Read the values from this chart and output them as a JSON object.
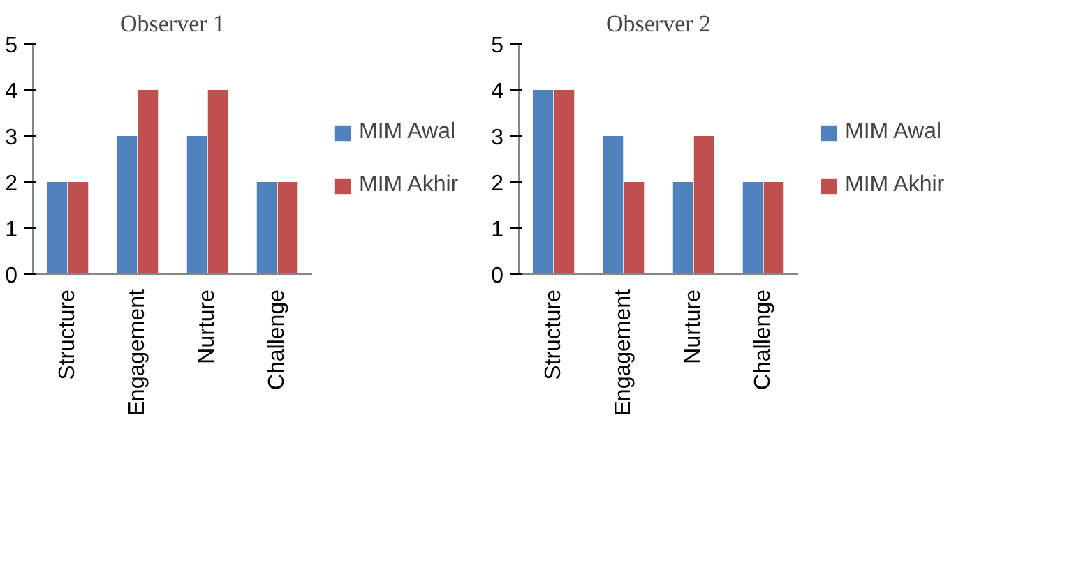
{
  "chart_data": [
    {
      "type": "bar",
      "title": "Observer 1",
      "categories": [
        "Structure",
        "Engagement",
        "Nurture",
        "Challenge"
      ],
      "ylim": [
        0,
        5
      ],
      "yticks": [
        0,
        1,
        2,
        3,
        4,
        5
      ],
      "legend": "right",
      "series": [
        {
          "name": "MIM Awal",
          "color": "#4f81bd",
          "values": [
            2,
            3,
            3,
            2
          ]
        },
        {
          "name": "MIM Akhir",
          "color": "#c0504d",
          "values": [
            2,
            4,
            4,
            2
          ]
        }
      ]
    },
    {
      "type": "bar",
      "title": "Observer 2",
      "categories": [
        "Structure",
        "Engagement",
        "Nurture",
        "Challenge"
      ],
      "ylim": [
        0,
        5
      ],
      "yticks": [
        0,
        1,
        2,
        3,
        4,
        5
      ],
      "legend": "right",
      "series": [
        {
          "name": "MIM Awal",
          "color": "#4f81bd",
          "values": [
            4,
            3,
            2,
            2
          ]
        },
        {
          "name": "MIM Akhir",
          "color": "#c0504d",
          "values": [
            4,
            2,
            3,
            2
          ]
        }
      ]
    }
  ]
}
